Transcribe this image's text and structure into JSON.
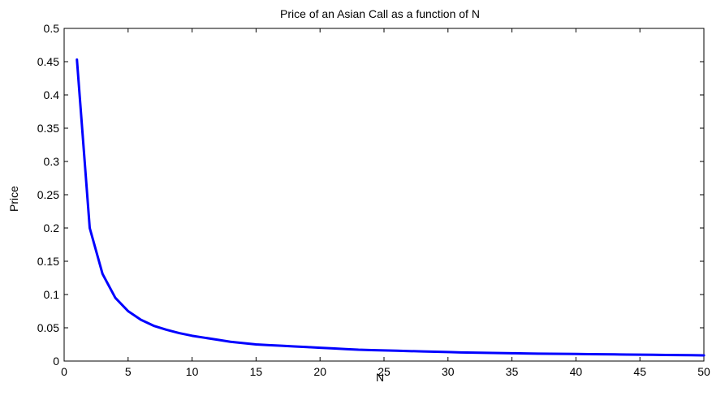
{
  "chart_data": {
    "type": "line",
    "title": "Price of an Asian Call as a function of N",
    "xlabel": "N",
    "ylabel": "Price",
    "xlim": [
      0,
      50
    ],
    "ylim": [
      0,
      0.5
    ],
    "xticks": [
      0,
      5,
      10,
      15,
      20,
      25,
      30,
      35,
      40,
      45,
      50
    ],
    "yticks": [
      0,
      0.05,
      0.1,
      0.15,
      0.2,
      0.25,
      0.3,
      0.35,
      0.4,
      0.45,
      0.5
    ],
    "xtick_labels": [
      "0",
      "5",
      "10",
      "15",
      "20",
      "25",
      "30",
      "35",
      "40",
      "45",
      "50"
    ],
    "ytick_labels": [
      "0",
      "0.05",
      "0.1",
      "0.15",
      "0.2",
      "0.25",
      "0.3",
      "0.35",
      "0.4",
      "0.45",
      "0.5"
    ],
    "grid": false,
    "series": [
      {
        "color": "#0000ff",
        "x": [
          1,
          2,
          3,
          4,
          5,
          6,
          7,
          8,
          9,
          10,
          11,
          12,
          13,
          14,
          15,
          16,
          17,
          18,
          19,
          20,
          21,
          22,
          23,
          24,
          25,
          26,
          27,
          28,
          29,
          30,
          31,
          32,
          33,
          34,
          35,
          36,
          37,
          38,
          39,
          40,
          41,
          42,
          43,
          44,
          45,
          46,
          47,
          48,
          49,
          50
        ],
        "y": [
          0.453,
          0.2,
          0.131,
          0.095,
          0.075,
          0.062,
          0.053,
          0.047,
          0.042,
          0.038,
          0.035,
          0.032,
          0.029,
          0.027,
          0.025,
          0.024,
          0.023,
          0.022,
          0.021,
          0.02,
          0.019,
          0.018,
          0.017,
          0.0165,
          0.016,
          0.0155,
          0.015,
          0.0145,
          0.014,
          0.0135,
          0.013,
          0.0127,
          0.0124,
          0.0121,
          0.0118,
          0.0115,
          0.0112,
          0.011,
          0.0108,
          0.0106,
          0.0104,
          0.0102,
          0.01,
          0.0098,
          0.0096,
          0.0094,
          0.0092,
          0.009,
          0.0088,
          0.0086
        ]
      }
    ]
  }
}
